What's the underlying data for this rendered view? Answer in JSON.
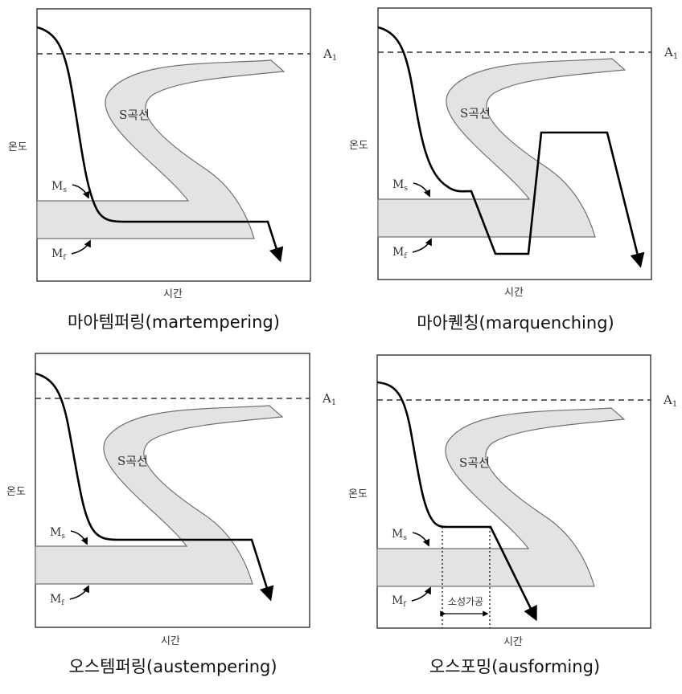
{
  "colors": {
    "band": "#e3e3e3",
    "band_stroke": "#707070",
    "curve": "#000000",
    "frame": "#222222"
  },
  "labels": {
    "a1": "A",
    "a1_sub": "1",
    "ms": "M",
    "ms_sub": "s",
    "mf": "M",
    "mf_sub": "f",
    "s_curve": "S곡선",
    "temp": "온도",
    "time": "시간",
    "plastic_working": "소성가공"
  },
  "panels": [
    {
      "caption": "마아템퍼링(martempering)"
    },
    {
      "caption": "마아퀜칭(marquenching)"
    },
    {
      "caption": "오스템퍼링(austempering)"
    },
    {
      "caption": "오스포밍(ausforming)"
    }
  ]
}
